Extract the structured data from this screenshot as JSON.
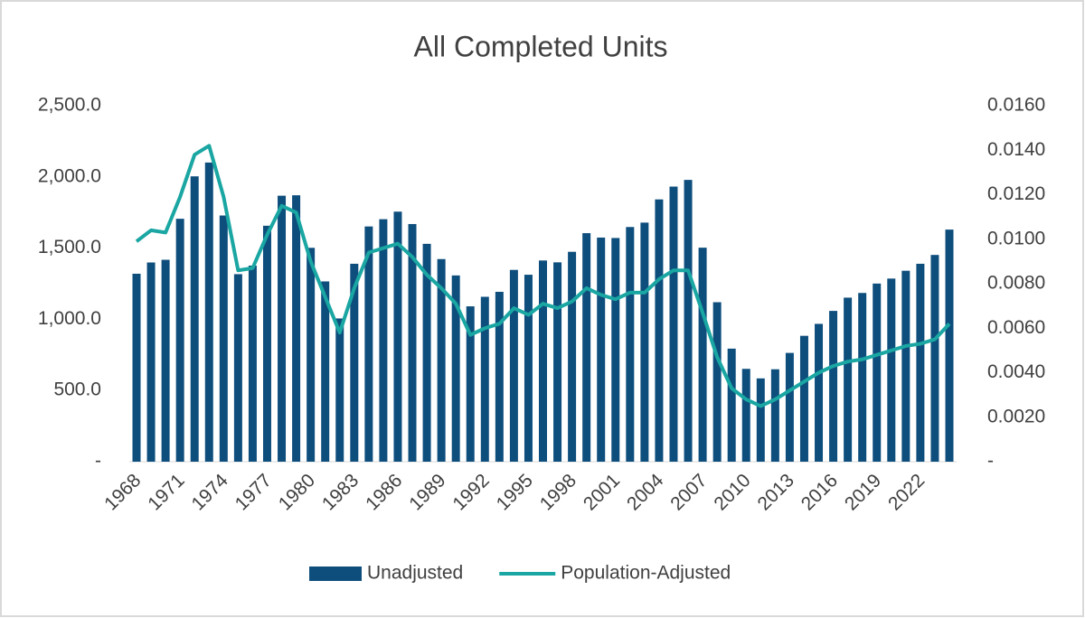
{
  "chart_data": {
    "type": "bar",
    "title": "All Completed Units",
    "categories": [
      "1968",
      null,
      null,
      "1971",
      null,
      null,
      "1974",
      null,
      null,
      "1977",
      null,
      null,
      "1980",
      null,
      null,
      "1983",
      null,
      null,
      "1986",
      null,
      null,
      "1989",
      null,
      null,
      "1992",
      null,
      null,
      "1995",
      null,
      null,
      "1998",
      null,
      null,
      "2001",
      null,
      null,
      "2004",
      null,
      null,
      "2007",
      null,
      null,
      "2010",
      null,
      null,
      "2013",
      null,
      null,
      "2016",
      null,
      null,
      "2019",
      null,
      null,
      "2022",
      null,
      null
    ],
    "series": [
      {
        "name": "Unadjusted",
        "type": "bar",
        "axis": "y",
        "color": "#0e4e7d",
        "values": [
          1320,
          1399,
          1418,
          1706,
          2004,
          2101,
          1729,
          1317,
          1377,
          1657,
          1868,
          1871,
          1502,
          1266,
          1006,
          1390,
          1652,
          1703,
          1756,
          1669,
          1530,
          1423,
          1308,
          1091,
          1158,
          1193,
          1347,
          1313,
          1413,
          1400,
          1474,
          1605,
          1574,
          1571,
          1648,
          1679,
          1842,
          1932,
          1979,
          1503,
          1120,
          794,
          652,
          585,
          649,
          764,
          884,
          968,
          1059,
          1152,
          1185,
          1251,
          1286,
          1341,
          1390,
          1452,
          1630
        ]
      },
      {
        "name": "Population-Adjusted",
        "type": "line",
        "axis": "y2",
        "color": "#1aa6a2",
        "values": [
          0.0099,
          0.0104,
          0.0103,
          0.0119,
          0.0138,
          0.0142,
          0.0119,
          0.0086,
          0.0087,
          0.0102,
          0.0115,
          0.0112,
          0.009,
          0.0074,
          0.0058,
          0.0078,
          0.0094,
          0.0096,
          0.0098,
          0.0092,
          0.0084,
          0.0078,
          0.0071,
          0.0057,
          0.006,
          0.0062,
          0.0069,
          0.0066,
          0.0071,
          0.0069,
          0.0072,
          0.0078,
          0.0075,
          0.0073,
          0.0076,
          0.0076,
          0.0082,
          0.0086,
          0.0086,
          0.0067,
          0.0047,
          0.0033,
          0.0028,
          0.0025,
          0.0028,
          0.0032,
          0.0036,
          0.004,
          0.0043,
          0.0045,
          0.0046,
          0.0048,
          0.005,
          0.0052,
          0.0053,
          0.0055,
          0.0062
        ]
      }
    ],
    "ylim": [
      0,
      2500
    ],
    "yticks": [
      {
        "value": 0,
        "label": "-"
      },
      {
        "value": 500,
        "label": "500.0"
      },
      {
        "value": 1000,
        "label": "1,000.0"
      },
      {
        "value": 1500,
        "label": "1,500.0"
      },
      {
        "value": 2000,
        "label": "2,000.0"
      },
      {
        "value": 2500,
        "label": "2,500.0"
      }
    ],
    "y2lim": [
      0,
      0.016
    ],
    "y2ticks": [
      {
        "value": 0,
        "label": "-"
      },
      {
        "value": 0.002,
        "label": "0.0020"
      },
      {
        "value": 0.004,
        "label": "0.0040"
      },
      {
        "value": 0.006,
        "label": "0.0060"
      },
      {
        "value": 0.008,
        "label": "0.0080"
      },
      {
        "value": 0.01,
        "label": "0.0100"
      },
      {
        "value": 0.012,
        "label": "0.0120"
      },
      {
        "value": 0.014,
        "label": "0.0140"
      },
      {
        "value": 0.016,
        "label": "0.0160"
      }
    ],
    "legend": "bottom"
  }
}
